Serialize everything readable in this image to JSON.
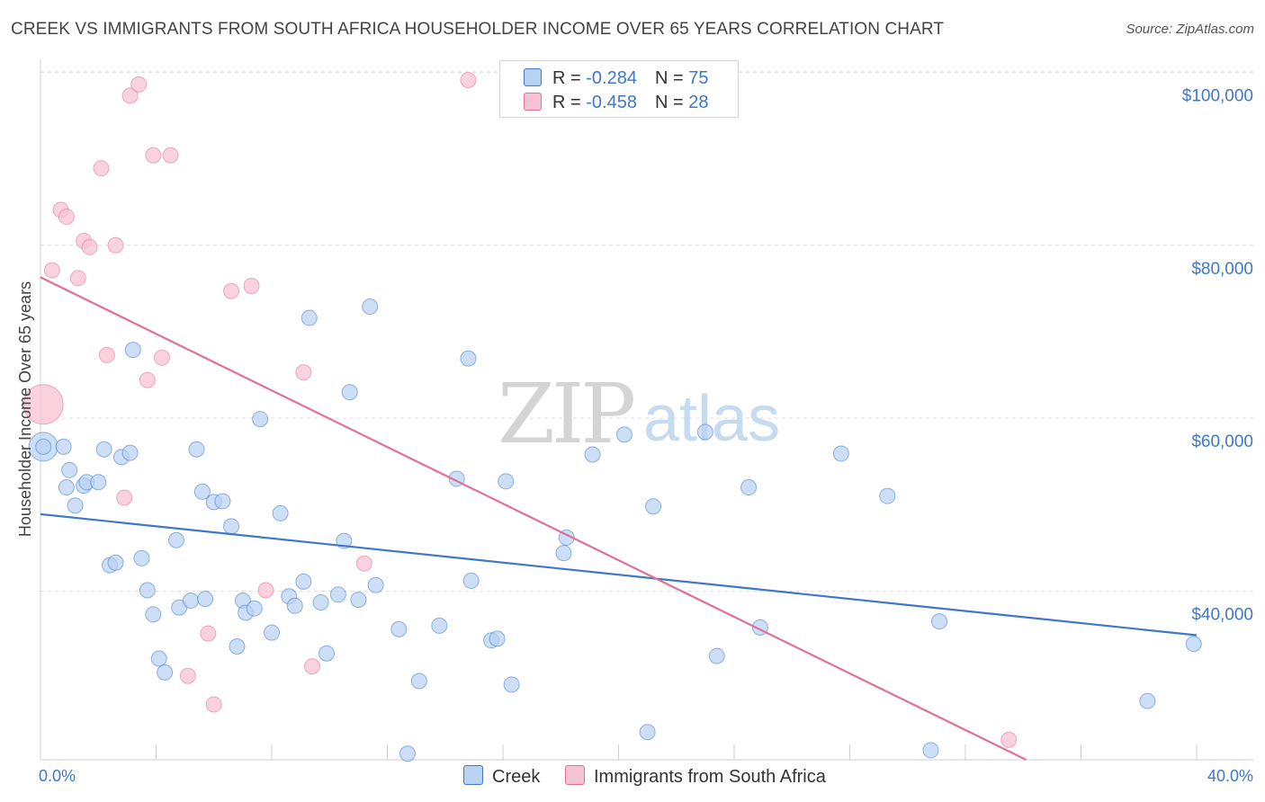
{
  "title": "CREEK VS IMMIGRANTS FROM SOUTH AFRICA HOUSEHOLDER INCOME OVER 65 YEARS CORRELATION CHART",
  "source": "Source: ZipAtlas.com",
  "watermark": {
    "zip": "ZIP",
    "atlas": "atlas"
  },
  "colors": {
    "creek": "#3f78c8",
    "creek_fill": "#b8d2f2",
    "sa": "#e07099",
    "sa_fill": "#f7c3d3",
    "axis_text": "#3f78c8"
  },
  "legend": {
    "creek": {
      "r_label": "R = ",
      "r_value": "-0.284",
      "n_label": "N = ",
      "n_value": "75"
    },
    "sa": {
      "r_label": "R = ",
      "r_value": "-0.458",
      "n_label": "N = ",
      "n_value": "28"
    }
  },
  "bottom_legend": {
    "creek": "Creek",
    "sa": "Immigrants from South Africa"
  },
  "chart_data": {
    "type": "scatter",
    "title": "CREEK VS IMMIGRANTS FROM SOUTH AFRICA HOUSEHOLDER INCOME OVER 65 YEARS CORRELATION CHART",
    "xlabel": "",
    "ylabel": "Householder Income Over 65 years",
    "xlim": [
      0,
      40
    ],
    "ylim": [
      20500,
      101500
    ],
    "x_tick_labels": [
      "0.0%",
      "40.0%"
    ],
    "y_ticks": [
      40000,
      60000,
      80000,
      100000
    ],
    "y_tick_labels": [
      "$40,000",
      "$60,000",
      "$80,000",
      "$100,000"
    ],
    "grid": true,
    "series": [
      {
        "name": "Creek",
        "points": [
          [
            0.1,
            56700
          ],
          [
            0.9,
            52000
          ],
          [
            0.8,
            56700
          ],
          [
            1.0,
            54000
          ],
          [
            1.2,
            49900
          ],
          [
            1.5,
            52200
          ],
          [
            1.6,
            52600
          ],
          [
            2.0,
            52600
          ],
          [
            2.2,
            56400
          ],
          [
            2.8,
            55500
          ],
          [
            3.1,
            56000
          ],
          [
            3.2,
            67900
          ],
          [
            2.4,
            43000
          ],
          [
            2.6,
            43300
          ],
          [
            3.5,
            43800
          ],
          [
            3.7,
            40100
          ],
          [
            3.9,
            37300
          ],
          [
            4.1,
            32200
          ],
          [
            4.3,
            30600
          ],
          [
            4.7,
            45900
          ],
          [
            4.8,
            38100
          ],
          [
            5.2,
            38900
          ],
          [
            5.4,
            56400
          ],
          [
            5.6,
            51500
          ],
          [
            5.7,
            39100
          ],
          [
            6.0,
            50300
          ],
          [
            6.3,
            50400
          ],
          [
            6.6,
            47500
          ],
          [
            6.8,
            33600
          ],
          [
            7.0,
            38900
          ],
          [
            7.1,
            37500
          ],
          [
            7.4,
            38000
          ],
          [
            7.6,
            59900
          ],
          [
            8.0,
            35200
          ],
          [
            8.3,
            49000
          ],
          [
            8.6,
            39400
          ],
          [
            8.8,
            38300
          ],
          [
            9.1,
            41100
          ],
          [
            9.3,
            71600
          ],
          [
            9.7,
            38700
          ],
          [
            9.9,
            32800
          ],
          [
            10.3,
            39600
          ],
          [
            10.5,
            45800
          ],
          [
            10.7,
            63000
          ],
          [
            11.0,
            39000
          ],
          [
            11.4,
            72900
          ],
          [
            11.6,
            40700
          ],
          [
            12.4,
            35600
          ],
          [
            12.7,
            21200
          ],
          [
            13.1,
            29600
          ],
          [
            13.8,
            36000
          ],
          [
            14.4,
            53000
          ],
          [
            14.8,
            66900
          ],
          [
            14.9,
            41200
          ],
          [
            15.6,
            34300
          ],
          [
            15.8,
            34500
          ],
          [
            16.1,
            52700
          ],
          [
            16.3,
            29200
          ],
          [
            18.1,
            44400
          ],
          [
            18.2,
            46200
          ],
          [
            19.1,
            55800
          ],
          [
            20.2,
            58100
          ],
          [
            21.0,
            23700
          ],
          [
            21.2,
            49800
          ],
          [
            23.0,
            58400
          ],
          [
            23.4,
            32500
          ],
          [
            24.9,
            35800
          ],
          [
            24.5,
            52000
          ],
          [
            27.7,
            55900
          ],
          [
            29.3,
            51000
          ],
          [
            30.8,
            21600
          ],
          [
            31.1,
            36500
          ],
          [
            38.3,
            27300
          ],
          [
            39.9,
            33900
          ],
          [
            0.1,
            56700
          ]
        ]
      },
      {
        "name": "Immigrants from South Africa",
        "points": [
          [
            0.1,
            61600
          ],
          [
            0.4,
            77100
          ],
          [
            0.7,
            84100
          ],
          [
            0.9,
            83300
          ],
          [
            1.3,
            76200
          ],
          [
            1.5,
            80500
          ],
          [
            1.7,
            79800
          ],
          [
            2.1,
            88900
          ],
          [
            2.3,
            67300
          ],
          [
            2.6,
            80000
          ],
          [
            2.9,
            50800
          ],
          [
            3.1,
            97300
          ],
          [
            3.4,
            98600
          ],
          [
            3.7,
            64400
          ],
          [
            3.9,
            90400
          ],
          [
            4.2,
            67000
          ],
          [
            4.5,
            90400
          ],
          [
            5.1,
            30200
          ],
          [
            5.8,
            35100
          ],
          [
            6.0,
            26900
          ],
          [
            6.6,
            74700
          ],
          [
            7.3,
            75300
          ],
          [
            7.8,
            40100
          ],
          [
            9.1,
            65300
          ],
          [
            9.4,
            31300
          ],
          [
            11.2,
            43200
          ],
          [
            14.8,
            99100
          ],
          [
            33.5,
            22800
          ]
        ]
      }
    ],
    "trend_lines": [
      {
        "name": "Creek",
        "x": [
          0,
          40
        ],
        "y": [
          48900,
          34900
        ]
      },
      {
        "name": "Immigrants from South Africa",
        "x": [
          0,
          34.1
        ],
        "y": [
          76300,
          20500
        ]
      }
    ]
  }
}
